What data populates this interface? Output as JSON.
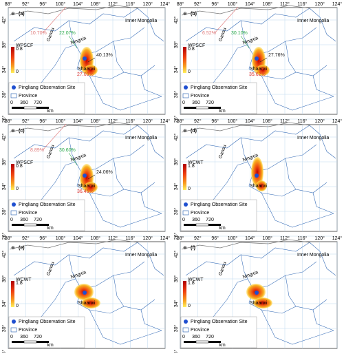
{
  "longitude_labels": [
    "88°",
    "92°",
    "96°",
    "100°",
    "104°",
    "108°",
    "112°",
    "116°",
    "120°",
    "124°"
  ],
  "latitude_labels": [
    "42°",
    "38°",
    "34°",
    "30°",
    "26°"
  ],
  "legend": {
    "site": "Pingliang Observation Site",
    "province": "Province"
  },
  "scale_bar": [
    "0",
    "360",
    "720",
    "km"
  ],
  "regions": [
    "Inner Mongolia",
    "Gansu",
    "Ningxia",
    "Shaanxi"
  ],
  "panels": [
    {
      "label": "(a)",
      "colorbar_title": "WPSCF",
      "colorbar_max": "0.8",
      "colorbar_min": "0",
      "percentages": [
        {
          "text": "10.70%",
          "color": "#e07a7a"
        },
        {
          "text": "22.07%",
          "color": "#2aa84a"
        },
        {
          "text": "40.13%",
          "color": "#222222"
        },
        {
          "text": "27.09%",
          "color": "#e0302a"
        }
      ]
    },
    {
      "label": "(b)",
      "colorbar_title": "WPSCF",
      "colorbar_max": "0.8",
      "colorbar_min": "0",
      "percentages": [
        {
          "text": "6.52%",
          "color": "#e07a7a"
        },
        {
          "text": "30.10%",
          "color": "#2aa84a"
        },
        {
          "text": "27.76%",
          "color": "#222222"
        },
        {
          "text": "35.62%",
          "color": "#e0302a"
        }
      ]
    },
    {
      "label": "(c)",
      "colorbar_title": "WPSCF",
      "colorbar_max": "0.8",
      "colorbar_min": "0",
      "percentages": [
        {
          "text": "8.89%",
          "color": "#e07a7a"
        },
        {
          "text": "30.60%",
          "color": "#2aa84a"
        },
        {
          "text": "24.06%",
          "color": "#222222"
        },
        {
          "text": "36.45%",
          "color": "#e0302a"
        }
      ]
    },
    {
      "label": "(d)",
      "colorbar_title": "WCWT",
      "colorbar_max": "1.8",
      "colorbar_min": "0",
      "percentages": []
    },
    {
      "label": "(e)",
      "colorbar_title": "WCWT",
      "colorbar_max": "1.8",
      "colorbar_min": "0",
      "percentages": []
    },
    {
      "label": "(f)",
      "colorbar_title": "WCWT",
      "colorbar_max": "1.8",
      "colorbar_min": "0",
      "percentages": []
    }
  ]
}
